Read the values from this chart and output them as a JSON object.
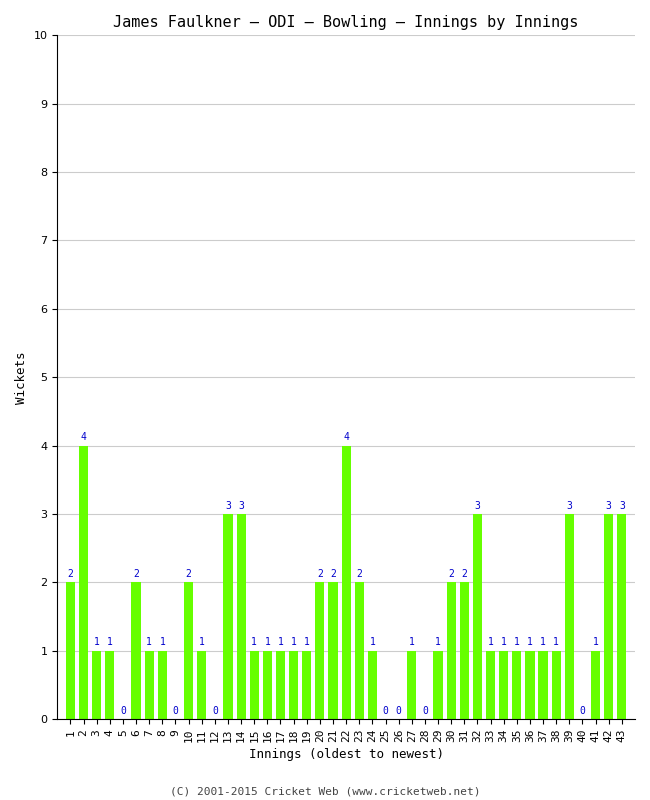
{
  "title": "James Faulkner – ODI – Bowling – Innings by Innings",
  "xlabel": "Innings (oldest to newest)",
  "ylabel": "Wickets",
  "footer": "(C) 2001-2015 Cricket Web (www.cricketweb.net)",
  "innings": [
    1,
    2,
    3,
    4,
    5,
    6,
    7,
    8,
    9,
    10,
    11,
    12,
    13,
    14,
    15,
    16,
    17,
    18,
    19,
    20,
    21,
    22,
    23,
    24,
    25,
    26,
    27,
    28,
    29,
    30,
    31,
    32,
    33,
    34,
    35,
    36,
    37,
    38,
    39,
    40,
    41,
    42,
    43
  ],
  "wickets": [
    2,
    4,
    1,
    1,
    0,
    2,
    1,
    1,
    0,
    2,
    1,
    0,
    3,
    3,
    1,
    1,
    1,
    1,
    1,
    2,
    2,
    4,
    2,
    1,
    0,
    0,
    1,
    0,
    1,
    2,
    2,
    3,
    1,
    1,
    1,
    1,
    1,
    1,
    3,
    0,
    1,
    3,
    3
  ],
  "bar_color": "#66ff00",
  "label_color": "#0000cc",
  "background_color": "#ffffff",
  "grid_color": "#cccccc",
  "ylim": [
    0,
    10
  ],
  "yticks": [
    0,
    1,
    2,
    3,
    4,
    5,
    6,
    7,
    8,
    9,
    10
  ],
  "title_fontsize": 11,
  "axis_label_fontsize": 9,
  "tick_fontsize": 8,
  "bar_label_fontsize": 7,
  "footer_fontsize": 8
}
